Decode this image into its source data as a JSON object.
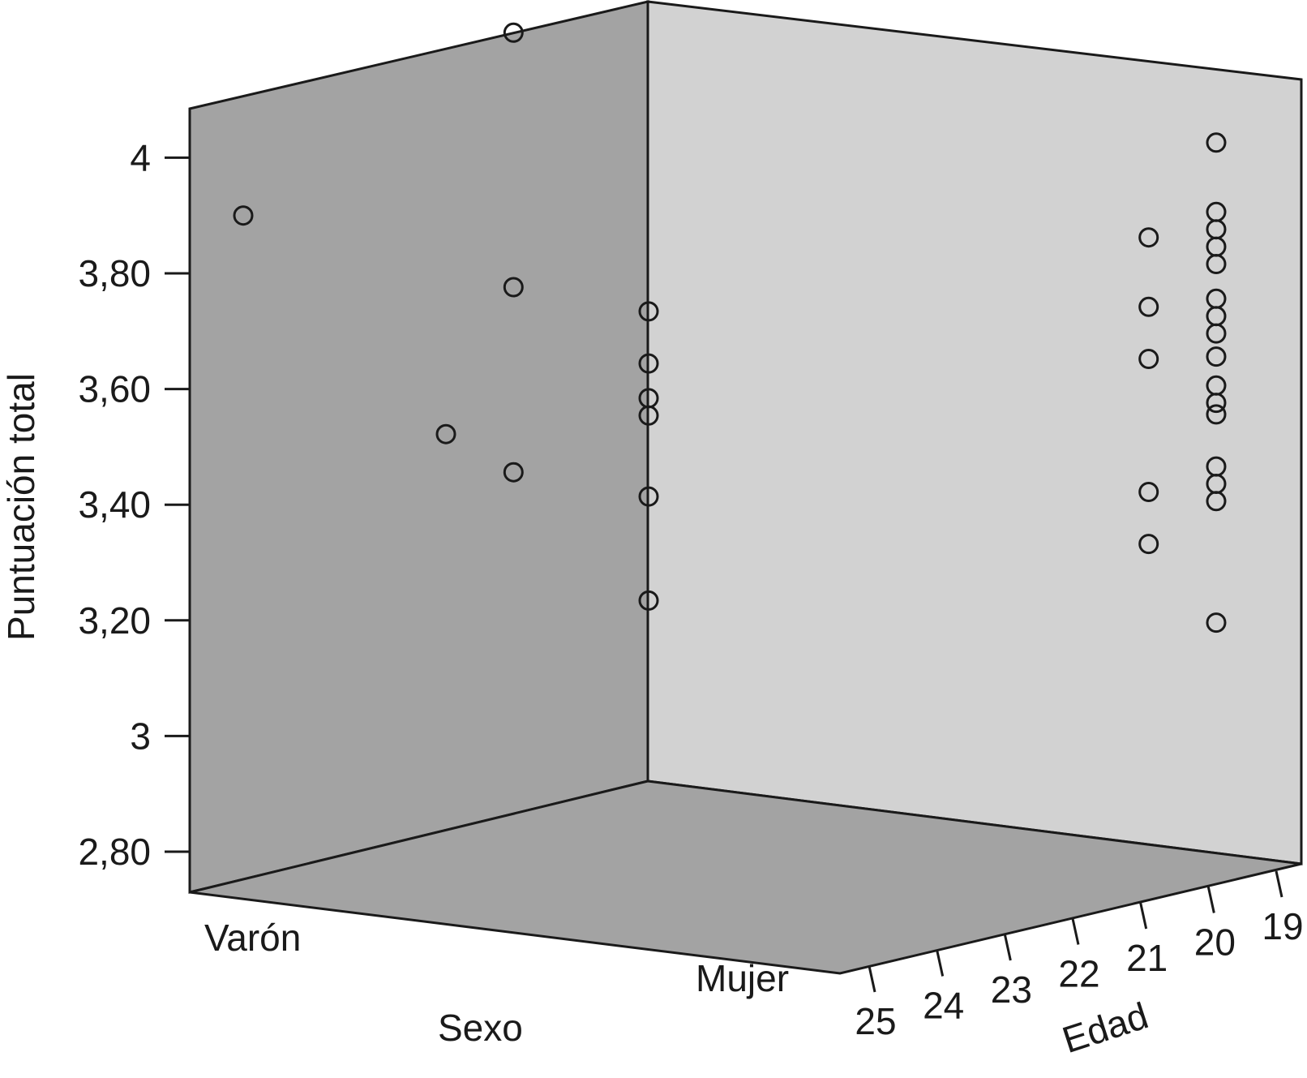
{
  "chart_data": {
    "type": "scatter",
    "subtype": "3d-scatter",
    "ylabel": "Puntuación total",
    "xlabel": "Sexo",
    "zlabel": "Edad",
    "y_ticks": [
      "2,80",
      "3",
      "3,20",
      "3,40",
      "3,60",
      "3,80",
      "4"
    ],
    "y_tick_values": [
      2.8,
      3.0,
      3.2,
      3.4,
      3.6,
      3.8,
      4.0
    ],
    "ylim": [
      2.73,
      4.08
    ],
    "sexo_categories": [
      "Varón",
      "Mujer"
    ],
    "edad_ticks": [
      "25",
      "24",
      "23",
      "22",
      "21",
      "20",
      "19"
    ],
    "edad_tick_values": [
      25,
      24,
      23,
      22,
      21,
      20,
      19
    ],
    "series": [
      {
        "points": [
          {
            "sexo": "Varón",
            "edad": 25,
            "puntuacion": 3.9
          },
          {
            "sexo": "Varón",
            "edad": 21,
            "puntuacion": 4.16
          },
          {
            "sexo": "Varón",
            "edad": 21,
            "puntuacion": 3.72
          },
          {
            "sexo": "Varón",
            "edad": 22,
            "puntuacion": 3.48
          },
          {
            "sexo": "Varón",
            "edad": 21,
            "puntuacion": 3.4
          },
          {
            "sexo": "Varón",
            "edad": 19,
            "puntuacion": 3.65
          },
          {
            "sexo": "Varón",
            "edad": 19,
            "puntuacion": 3.56
          },
          {
            "sexo": "Varón",
            "edad": 19,
            "puntuacion": 3.5
          },
          {
            "sexo": "Varón",
            "edad": 19,
            "puntuacion": 3.47
          },
          {
            "sexo": "Varón",
            "edad": 19,
            "puntuacion": 3.33
          },
          {
            "sexo": "Varón",
            "edad": 19,
            "puntuacion": 3.15
          },
          {
            "sexo": "Mujer",
            "edad": 20,
            "puntuacion": 3.82
          },
          {
            "sexo": "Mujer",
            "edad": 20,
            "puntuacion": 3.7
          },
          {
            "sexo": "Mujer",
            "edad": 20,
            "puntuacion": 3.61
          },
          {
            "sexo": "Mujer",
            "edad": 20,
            "puntuacion": 3.38
          },
          {
            "sexo": "Mujer",
            "edad": 20,
            "puntuacion": 3.29
          },
          {
            "sexo": "Mujer",
            "edad": 19,
            "puntuacion": 3.97
          },
          {
            "sexo": "Mujer",
            "edad": 19,
            "puntuacion": 3.85
          },
          {
            "sexo": "Mujer",
            "edad": 19,
            "puntuacion": 3.82
          },
          {
            "sexo": "Mujer",
            "edad": 19,
            "puntuacion": 3.79
          },
          {
            "sexo": "Mujer",
            "edad": 19,
            "puntuacion": 3.76
          },
          {
            "sexo": "Mujer",
            "edad": 19,
            "puntuacion": 3.7
          },
          {
            "sexo": "Mujer",
            "edad": 19,
            "puntuacion": 3.67
          },
          {
            "sexo": "Mujer",
            "edad": 19,
            "puntuacion": 3.64
          },
          {
            "sexo": "Mujer",
            "edad": 19,
            "puntuacion": 3.6
          },
          {
            "sexo": "Mujer",
            "edad": 19,
            "puntuacion": 3.55
          },
          {
            "sexo": "Mujer",
            "edad": 19,
            "puntuacion": 3.52
          },
          {
            "sexo": "Mujer",
            "edad": 19,
            "puntuacion": 3.5
          },
          {
            "sexo": "Mujer",
            "edad": 19,
            "puntuacion": 3.41
          },
          {
            "sexo": "Mujer",
            "edad": 19,
            "puntuacion": 3.38
          },
          {
            "sexo": "Mujer",
            "edad": 19,
            "puntuacion": 3.35
          },
          {
            "sexo": "Mujer",
            "edad": 19,
            "puntuacion": 3.14
          }
        ]
      }
    ],
    "grid": false,
    "colors": {
      "left_wall": "#a3a3a3",
      "back_wall": "#d2d2d2",
      "floor": "#a3a3a3",
      "marker_edge": "#1a1a1a"
    }
  }
}
